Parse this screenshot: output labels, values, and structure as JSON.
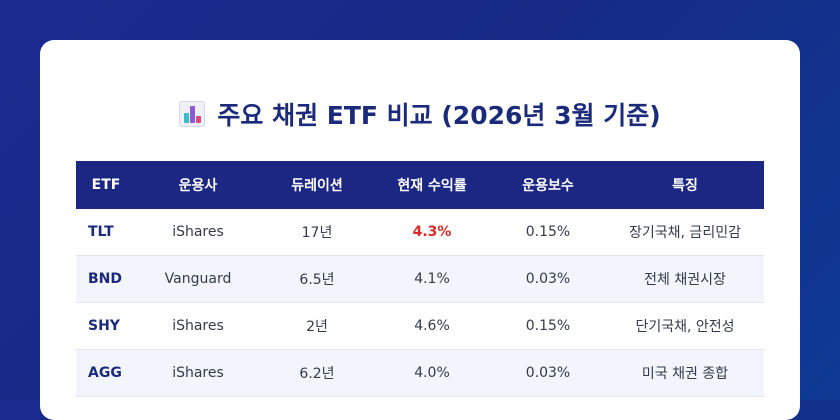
{
  "title": "주요 채권 ETF 비교 (2026년 3월 기준)",
  "icon": "bar-chart-icon",
  "table": {
    "headers": [
      "ETF",
      "운용사",
      "듀레이션",
      "현재 수익률",
      "운용보수",
      "특징"
    ],
    "rows": [
      {
        "etf": "TLT",
        "issuer": "iShares",
        "duration": "17년",
        "yield": "4.3%",
        "fee": "0.15%",
        "feature": "장기국채, 금리민감"
      },
      {
        "etf": "BND",
        "issuer": "Vanguard",
        "duration": "6.5년",
        "yield": "4.1%",
        "fee": "0.03%",
        "feature": "전체 채권시장"
      },
      {
        "etf": "SHY",
        "issuer": "iShares",
        "duration": "2년",
        "yield": "4.6%",
        "fee": "0.15%",
        "feature": "단기국채, 안전성"
      },
      {
        "etf": "AGG",
        "issuer": "iShares",
        "duration": "6.2년",
        "yield": "4.0%",
        "fee": "0.03%",
        "feature": "미국 채권 종합"
      }
    ]
  },
  "colors": {
    "header_bg": "#1c2784",
    "accent_text": "#1b2a7a",
    "highlight": "#d92b2b",
    "stripe": "#f2f5fc"
  }
}
